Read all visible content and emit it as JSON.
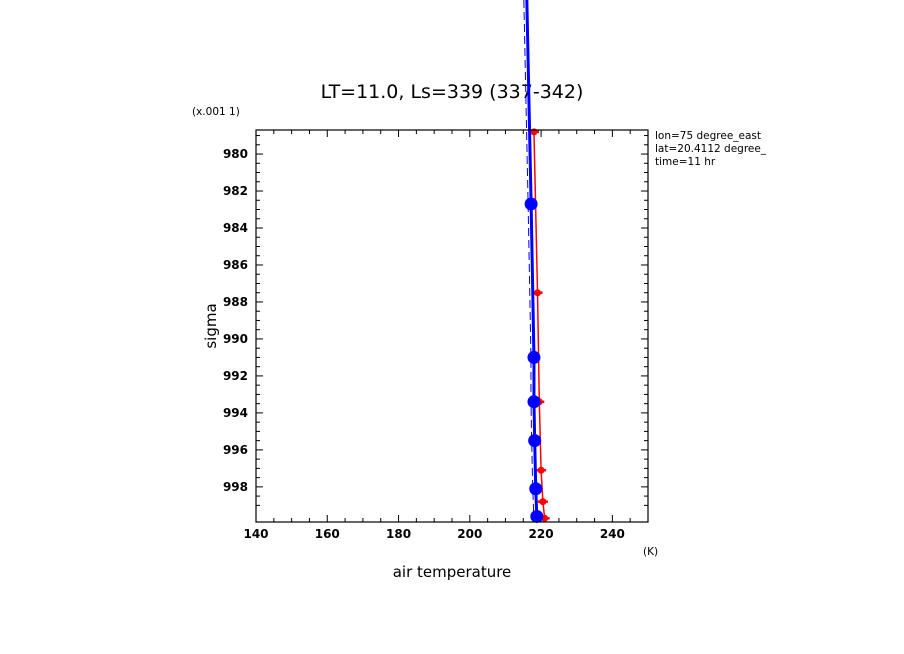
{
  "chart_data": {
    "type": "line",
    "title": "LT=11.0, Ls=339 (337-342)",
    "xlabel": "air temperature",
    "ylabel": "sigma",
    "x_unit": "(K)",
    "y_scale_note": "(x.001 1)",
    "xlim": [
      140,
      250
    ],
    "ylim": [
      999.9,
      978.7
    ],
    "x_ticks": [
      140,
      160,
      180,
      200,
      220,
      240
    ],
    "y_ticks": [
      980,
      982,
      984,
      986,
      988,
      990,
      992,
      994,
      996,
      998
    ],
    "y_tick_labels": [
      "980",
      "982",
      "984",
      "986",
      "988",
      "990",
      "992",
      "994",
      "996",
      "998"
    ],
    "grid": false,
    "legend": "none",
    "annotations": [
      "lon=75 degree_east",
      "lat=20.4112 degree_",
      "time=11 hr"
    ],
    "series": [
      {
        "color": "#ff0000",
        "points": [
          {
            "x": 218.0,
            "y": 978.8
          },
          {
            "x": 219.0,
            "y": 987.5
          },
          {
            "x": 219.5,
            "y": 993.4
          },
          {
            "x": 220.0,
            "y": 997.1
          },
          {
            "x": 220.5,
            "y": 998.8
          },
          {
            "x": 221.0,
            "y": 999.7
          }
        ]
      },
      {
        "color": "#0000ff",
        "points": [
          {
            "x": 216.0,
            "y": 970.0
          },
          {
            "x": 217.2,
            "y": 982.7
          },
          {
            "x": 218.0,
            "y": 991.0
          },
          {
            "x": 218.0,
            "y": 993.4
          },
          {
            "x": 218.2,
            "y": 995.5
          },
          {
            "x": 218.5,
            "y": 998.1
          },
          {
            "x": 218.8,
            "y": 999.6
          }
        ]
      }
    ]
  }
}
